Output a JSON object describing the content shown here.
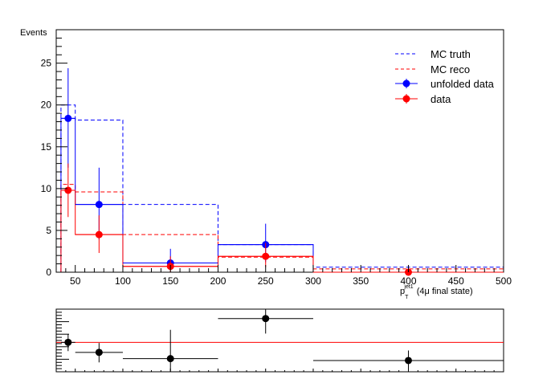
{
  "chart_data": [
    {
      "type": "histogram",
      "panel": "main",
      "ylabel": "Events",
      "xlabel": {
        "main": "p",
        "sub": "T",
        "sup": "jet1",
        "suffix": "(4μ final state)"
      },
      "xlim": [
        30,
        500
      ],
      "ylim": [
        0,
        29
      ],
      "x_ticks": [
        50,
        100,
        150,
        200,
        250,
        300,
        350,
        400,
        450,
        500
      ],
      "y_ticks": [
        0,
        5,
        10,
        15,
        20,
        25
      ],
      "bin_edges": [
        35,
        50,
        100,
        200,
        300,
        500
      ],
      "legend": {
        "position": "top-right",
        "entries": [
          {
            "label": "MC truth",
            "style": "dashed-line",
            "color": "#0000ff"
          },
          {
            "label": "MC reco",
            "style": "dashed-line",
            "color": "#ff0000"
          },
          {
            "label": "unfolded data",
            "style": "marker",
            "color": "#0000ff"
          },
          {
            "label": "data",
            "style": "marker",
            "color": "#ff0000"
          }
        ]
      },
      "series": [
        {
          "name": "MC truth",
          "kind": "step-dashed",
          "color": "#0000ff",
          "values": [
            20.0,
            18.2,
            8.1,
            3.3,
            0.6
          ]
        },
        {
          "name": "MC reco",
          "kind": "step-dashed",
          "color": "#ff0000",
          "values": [
            10.5,
            9.6,
            4.5,
            1.8,
            0.4
          ]
        },
        {
          "name": "unfolded-step",
          "kind": "step-solid",
          "color": "#0000ff",
          "values": [
            18.4,
            8.1,
            1.1,
            3.3,
            0.0
          ]
        },
        {
          "name": "data-step",
          "kind": "step-solid",
          "color": "#ff0000",
          "values": [
            9.8,
            4.5,
            0.7,
            1.9,
            0.0
          ]
        },
        {
          "name": "unfolded data",
          "kind": "points",
          "color": "#0000ff",
          "points": [
            {
              "x": 42.5,
              "y": 18.4,
              "xlo": 35,
              "xhi": 50,
              "ylo": 12.5,
              "yhi": 24.4
            },
            {
              "x": 75,
              "y": 8.1,
              "xlo": 50,
              "xhi": 100,
              "ylo": 3.9,
              "yhi": 12.5
            },
            {
              "x": 150,
              "y": 1.1,
              "xlo": 100,
              "xhi": 200,
              "ylo": 0.4,
              "yhi": 2.8
            },
            {
              "x": 250,
              "y": 3.3,
              "xlo": 200,
              "xhi": 300,
              "ylo": 1.2,
              "yhi": 5.8
            }
          ]
        },
        {
          "name": "data",
          "kind": "points",
          "color": "#ff0000",
          "points": [
            {
              "x": 42.5,
              "y": 9.8,
              "xlo": 35,
              "xhi": 50,
              "ylo": 6.6,
              "yhi": 13.0
            },
            {
              "x": 75,
              "y": 4.5,
              "xlo": 50,
              "xhi": 100,
              "ylo": 2.3,
              "yhi": 6.8
            },
            {
              "x": 150,
              "y": 0.7,
              "xlo": 100,
              "xhi": 200,
              "ylo": 0.0,
              "yhi": 1.9
            },
            {
              "x": 250,
              "y": 1.9,
              "xlo": 200,
              "xhi": 300,
              "ylo": 0.6,
              "yhi": 3.5
            },
            {
              "x": 400,
              "y": 0.0,
              "xlo": 300,
              "xhi": 500,
              "ylo": 0.0,
              "yhi": 0.3
            }
          ]
        }
      ]
    },
    {
      "type": "scatter",
      "panel": "ratio",
      "xlim": [
        30,
        500
      ],
      "ylim": [
        0,
        1
      ],
      "reference_line": {
        "y": 0.47,
        "color": "#ff0000"
      },
      "points": [
        {
          "x": 42.5,
          "y": 0.47,
          "xlo": 35,
          "xhi": 50,
          "ylo": 0.33,
          "yhi": 0.6
        },
        {
          "x": 75,
          "y": 0.31,
          "xlo": 50,
          "xhi": 100,
          "ylo": 0.15,
          "yhi": 0.46
        },
        {
          "x": 150,
          "y": 0.21,
          "xlo": 100,
          "xhi": 200,
          "ylo": 0.0,
          "yhi": 0.67
        },
        {
          "x": 250,
          "y": 0.85,
          "xlo": 200,
          "xhi": 300,
          "ylo": 0.61,
          "yhi": 1.0
        },
        {
          "x": 400,
          "y": 0.18,
          "xlo": 300,
          "xhi": 500,
          "ylo": 0.0,
          "yhi": 0.34
        }
      ]
    }
  ]
}
